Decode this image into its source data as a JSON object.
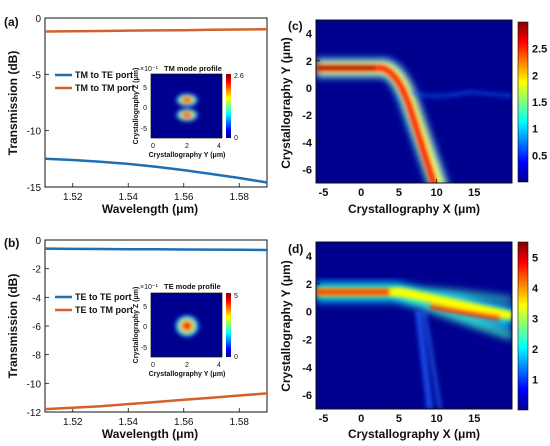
{
  "figure": {
    "panels": [
      {
        "label": "(a)"
      },
      {
        "label": "(b)"
      },
      {
        "label": "(c)"
      },
      {
        "label": "(d)"
      }
    ]
  },
  "colors": {
    "blue_series": "#1f6fb3",
    "orange_series": "#d4602a"
  },
  "chart_data": [
    {
      "panel": "(a)",
      "type": "line",
      "xlabel": "Wavelength (μm)",
      "ylabel": "Transmission (dB)",
      "xlim": [
        1.51,
        1.59
      ],
      "ylim": [
        -15,
        0
      ],
      "xticks": [
        "1.52",
        "1.54",
        "1.56",
        "1.58"
      ],
      "yticks": [
        "0",
        "-5",
        "-10",
        "-15"
      ],
      "legend_position": "upper-left",
      "series": [
        {
          "name": "TM to TE port",
          "color": "#1f6fb3",
          "x": [
            1.51,
            1.52,
            1.53,
            1.54,
            1.55,
            1.56,
            1.57,
            1.58,
            1.59
          ],
          "y": [
            -12.5,
            -12.6,
            -12.75,
            -12.95,
            -13.2,
            -13.5,
            -13.85,
            -14.2,
            -14.6
          ]
        },
        {
          "name": "TM to TM port",
          "color": "#d4602a",
          "x": [
            1.51,
            1.52,
            1.53,
            1.54,
            1.55,
            1.56,
            1.57,
            1.58,
            1.59
          ],
          "y": [
            -1.2,
            -1.18,
            -1.15,
            -1.12,
            -1.1,
            -1.08,
            -1.05,
            -1.02,
            -1.0
          ]
        }
      ],
      "inset": {
        "title": "TM mode profile",
        "type": "heatmap",
        "exponent_label": "×10⁻¹",
        "xlabel": "Crystallography Y (μm)",
        "ylabel": "Crystallography Z (μm)",
        "xticks": [
          "0",
          "2",
          "4"
        ],
        "yticks": [
          "5",
          "0",
          "-5"
        ],
        "colorbar_ticks": [
          "2.6",
          "0"
        ],
        "mode": "two-lobe"
      }
    },
    {
      "panel": "(b)",
      "type": "line",
      "xlabel": "Wavelength (μm)",
      "ylabel": "Transmission (dB)",
      "xlim": [
        1.51,
        1.59
      ],
      "ylim": [
        -12,
        0
      ],
      "xticks": [
        "1.52",
        "1.54",
        "1.56",
        "1.58"
      ],
      "yticks": [
        "0",
        "-2",
        "-4",
        "-6",
        "-8",
        "-10",
        "-12"
      ],
      "legend_position": "upper-left",
      "series": [
        {
          "name": "TE to TE port",
          "color": "#1f6fb3",
          "x": [
            1.51,
            1.52,
            1.53,
            1.54,
            1.55,
            1.56,
            1.57,
            1.58,
            1.59
          ],
          "y": [
            -0.6,
            -0.62,
            -0.63,
            -0.64,
            -0.65,
            -0.66,
            -0.67,
            -0.68,
            -0.7
          ]
        },
        {
          "name": "TE to TM port",
          "color": "#d4602a",
          "x": [
            1.51,
            1.52,
            1.53,
            1.54,
            1.55,
            1.56,
            1.57,
            1.58,
            1.59
          ],
          "y": [
            -11.8,
            -11.7,
            -11.6,
            -11.45,
            -11.3,
            -11.15,
            -11.0,
            -10.85,
            -10.7
          ]
        }
      ],
      "inset": {
        "title": "TE mode profile",
        "type": "heatmap",
        "exponent_label": "×10⁻¹",
        "xlabel": "Crystallography Y (μm)",
        "ylabel": "Crystallography Z (μm)",
        "xticks": [
          "0",
          "2",
          "4"
        ],
        "yticks": [
          "5",
          "0",
          "-5"
        ],
        "colorbar_ticks": [
          "5",
          "0"
        ],
        "mode": "single-lobe"
      }
    },
    {
      "panel": "(c)",
      "type": "heatmap",
      "xlabel": "Crystallography X (μm)",
      "ylabel": "Crystallography Y (μm)",
      "xlim": [
        -6,
        20
      ],
      "ylim": [
        -7,
        5
      ],
      "xticks": [
        "-5",
        "0",
        "5",
        "10",
        "15"
      ],
      "yticks": [
        "4",
        "2",
        "0",
        "-2",
        "-4",
        "-6"
      ],
      "colorbar_ticks": [
        "2.5",
        "2",
        "1.5",
        "1",
        "0.5"
      ],
      "colorbar_range": [
        0,
        3.0
      ],
      "description_path": "beam at y=2.2 bends downward to y=-7 near x=10"
    },
    {
      "panel": "(d)",
      "type": "heatmap",
      "xlabel": "Crystallography X (μm)",
      "ylabel": "Crystallography Y (μm)",
      "xlim": [
        -6,
        20
      ],
      "ylim": [
        -7,
        5
      ],
      "xticks": [
        "-5",
        "0",
        "5",
        "10",
        "15"
      ],
      "yticks": [
        "4",
        "2",
        "0",
        "-2",
        "-4",
        "-6"
      ],
      "colorbar_ticks": [
        "5",
        "4",
        "3",
        "2",
        "1"
      ],
      "colorbar_range": [
        0,
        5.5
      ],
      "description_path": "beam at y=2.2 continues to the right, spreading near x=10"
    }
  ]
}
